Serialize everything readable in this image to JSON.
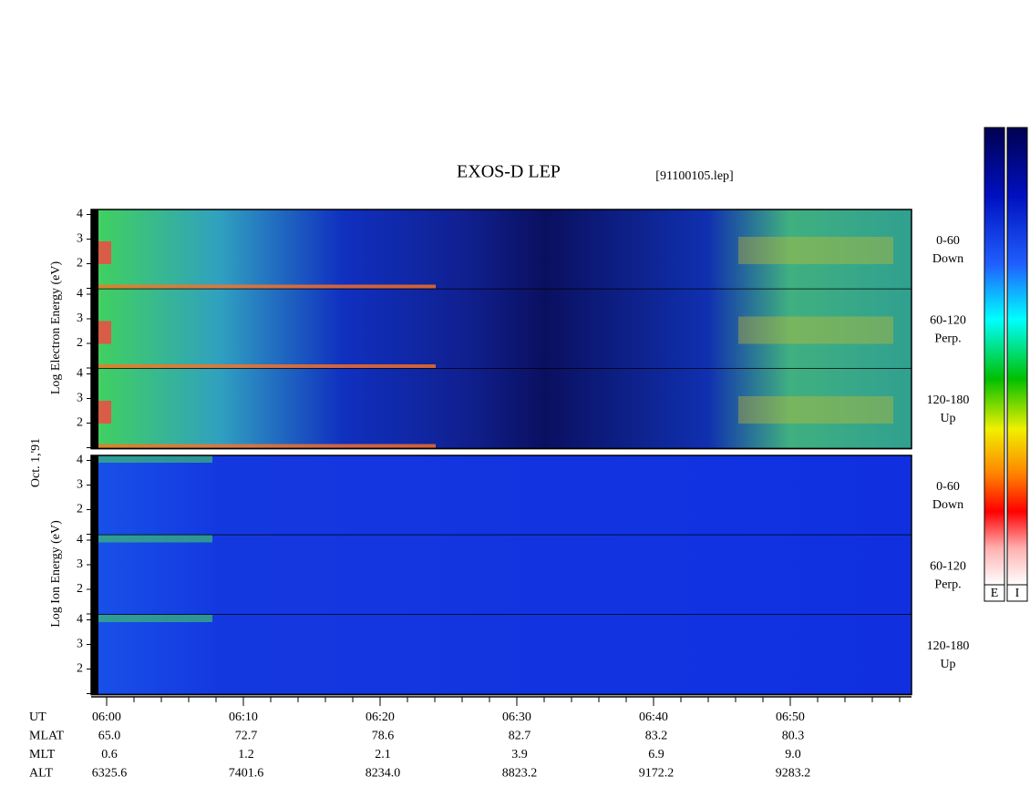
{
  "header": {
    "title": "EXOS-D LEP",
    "file": "[91100105.lep]"
  },
  "electron": {
    "axis_label": "Log Electron Energy (eV)",
    "panels": [
      {
        "range": "0-60",
        "direction": "Down"
      },
      {
        "range": "60-120",
        "direction": "Perp."
      },
      {
        "range": "120-180",
        "direction": "Up"
      }
    ]
  },
  "ion": {
    "axis_label": "Log Ion Energy (eV)",
    "panels": [
      {
        "range": "0-60",
        "direction": "Down"
      },
      {
        "range": "60-120",
        "direction": "Perp."
      },
      {
        "range": "120-180",
        "direction": "Up"
      }
    ]
  },
  "date": "Oct. 1,'91",
  "energy_ticks": [
    "2",
    "3",
    "4"
  ],
  "time_labels": [
    "06:00",
    "06:10",
    "06:20",
    "06:30",
    "06:40",
    "06:50"
  ],
  "ephemeris": [
    {
      "label": "UT",
      "values": []
    },
    {
      "label": "MLAT",
      "values": [
        "65.0",
        "72.7",
        "78.6",
        "82.7",
        "83.2",
        "80.3"
      ]
    },
    {
      "label": "MLT",
      "values": [
        "0.6",
        "1.2",
        "2.1",
        "3.9",
        "6.9",
        "9.0"
      ]
    },
    {
      "label": "ALT",
      "values": [
        "6325.6",
        "7401.6",
        "8234.0",
        "8823.2",
        "9172.2",
        "9283.2"
      ]
    }
  ],
  "colorbars": [
    "E",
    "I"
  ]
}
